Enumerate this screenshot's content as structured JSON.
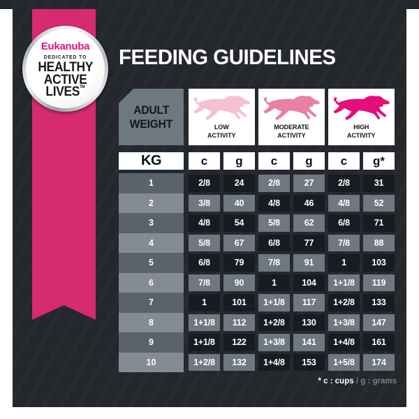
{
  "page": {
    "title": "FEEDING GUIDELINES"
  },
  "badge": {
    "brand": "Eukanuba",
    "tagline": "DEDICATED TO",
    "big1": "HEALTHY",
    "big2": "ACTIVE",
    "big3": "LIVES",
    "trademark": "TM"
  },
  "corner": {
    "line1": "ADULT",
    "line2": "WEIGHT"
  },
  "activities": [
    {
      "label_line1": "LOW",
      "label_line2": "ACTIVITY",
      "dog_color": "#f6c0d2",
      "icon": "running-dog-icon"
    },
    {
      "label_line1": "MODERATE",
      "label_line2": "ACTIVITY",
      "dog_color": "#ea7fa5",
      "icon": "running-dog-icon"
    },
    {
      "label_line1": "HIGH",
      "label_line2": "ACTIVITY",
      "dog_color": "#e60d7c",
      "icon": "running-dog-icon"
    }
  ],
  "unit_headers": [
    "KG",
    "c",
    "g",
    "c",
    "g",
    "c",
    "g*"
  ],
  "chart_data": {
    "type": "table",
    "title": "FEEDING GUIDELINES",
    "columns": [
      "KG",
      "LOW ACTIVITY c",
      "LOW ACTIVITY g",
      "MODERATE ACTIVITY c",
      "MODERATE ACTIVITY g",
      "HIGH ACTIVITY c",
      "HIGH ACTIVITY g"
    ],
    "rows": [
      {
        "kg": "1",
        "cells": [
          "2/8",
          "24",
          "2/8",
          "27",
          "2/8",
          "31"
        ]
      },
      {
        "kg": "2",
        "cells": [
          "3/8",
          "40",
          "4/8",
          "46",
          "4/8",
          "52"
        ]
      },
      {
        "kg": "3",
        "cells": [
          "4/8",
          "54",
          "5/8",
          "62",
          "6/8",
          "71"
        ]
      },
      {
        "kg": "4",
        "cells": [
          "5/8",
          "67",
          "6/8",
          "77",
          "7/8",
          "88"
        ]
      },
      {
        "kg": "5",
        "cells": [
          "6/8",
          "79",
          "7/8",
          "91",
          "1",
          "103"
        ]
      },
      {
        "kg": "6",
        "cells": [
          "7/8",
          "90",
          "1",
          "104",
          "1+1/8",
          "119"
        ]
      },
      {
        "kg": "7",
        "cells": [
          "1",
          "101",
          "1+1/8",
          "117",
          "1+2/8",
          "133"
        ]
      },
      {
        "kg": "8",
        "cells": [
          "1+1/8",
          "112",
          "1+2/8",
          "130",
          "1+3/8",
          "147"
        ]
      },
      {
        "kg": "9",
        "cells": [
          "1+1/8",
          "122",
          "1+3/8",
          "141",
          "1+4/8",
          "161"
        ]
      },
      {
        "kg": "10",
        "cells": [
          "1+2/8",
          "132",
          "1+4/8",
          "153",
          "1+5/8",
          "174"
        ]
      }
    ]
  },
  "footnote": {
    "bold": "* c : cups",
    "rest": " / g : grams"
  },
  "colors": {
    "panel": "#24272c",
    "ribbon_pink": "#d62a71",
    "brand_pink": "#e3137b",
    "cell_dark": "#181b21",
    "cell_gray": "#6f777f",
    "kg_dark": "#5a626b",
    "kg_light": "#848b92"
  }
}
